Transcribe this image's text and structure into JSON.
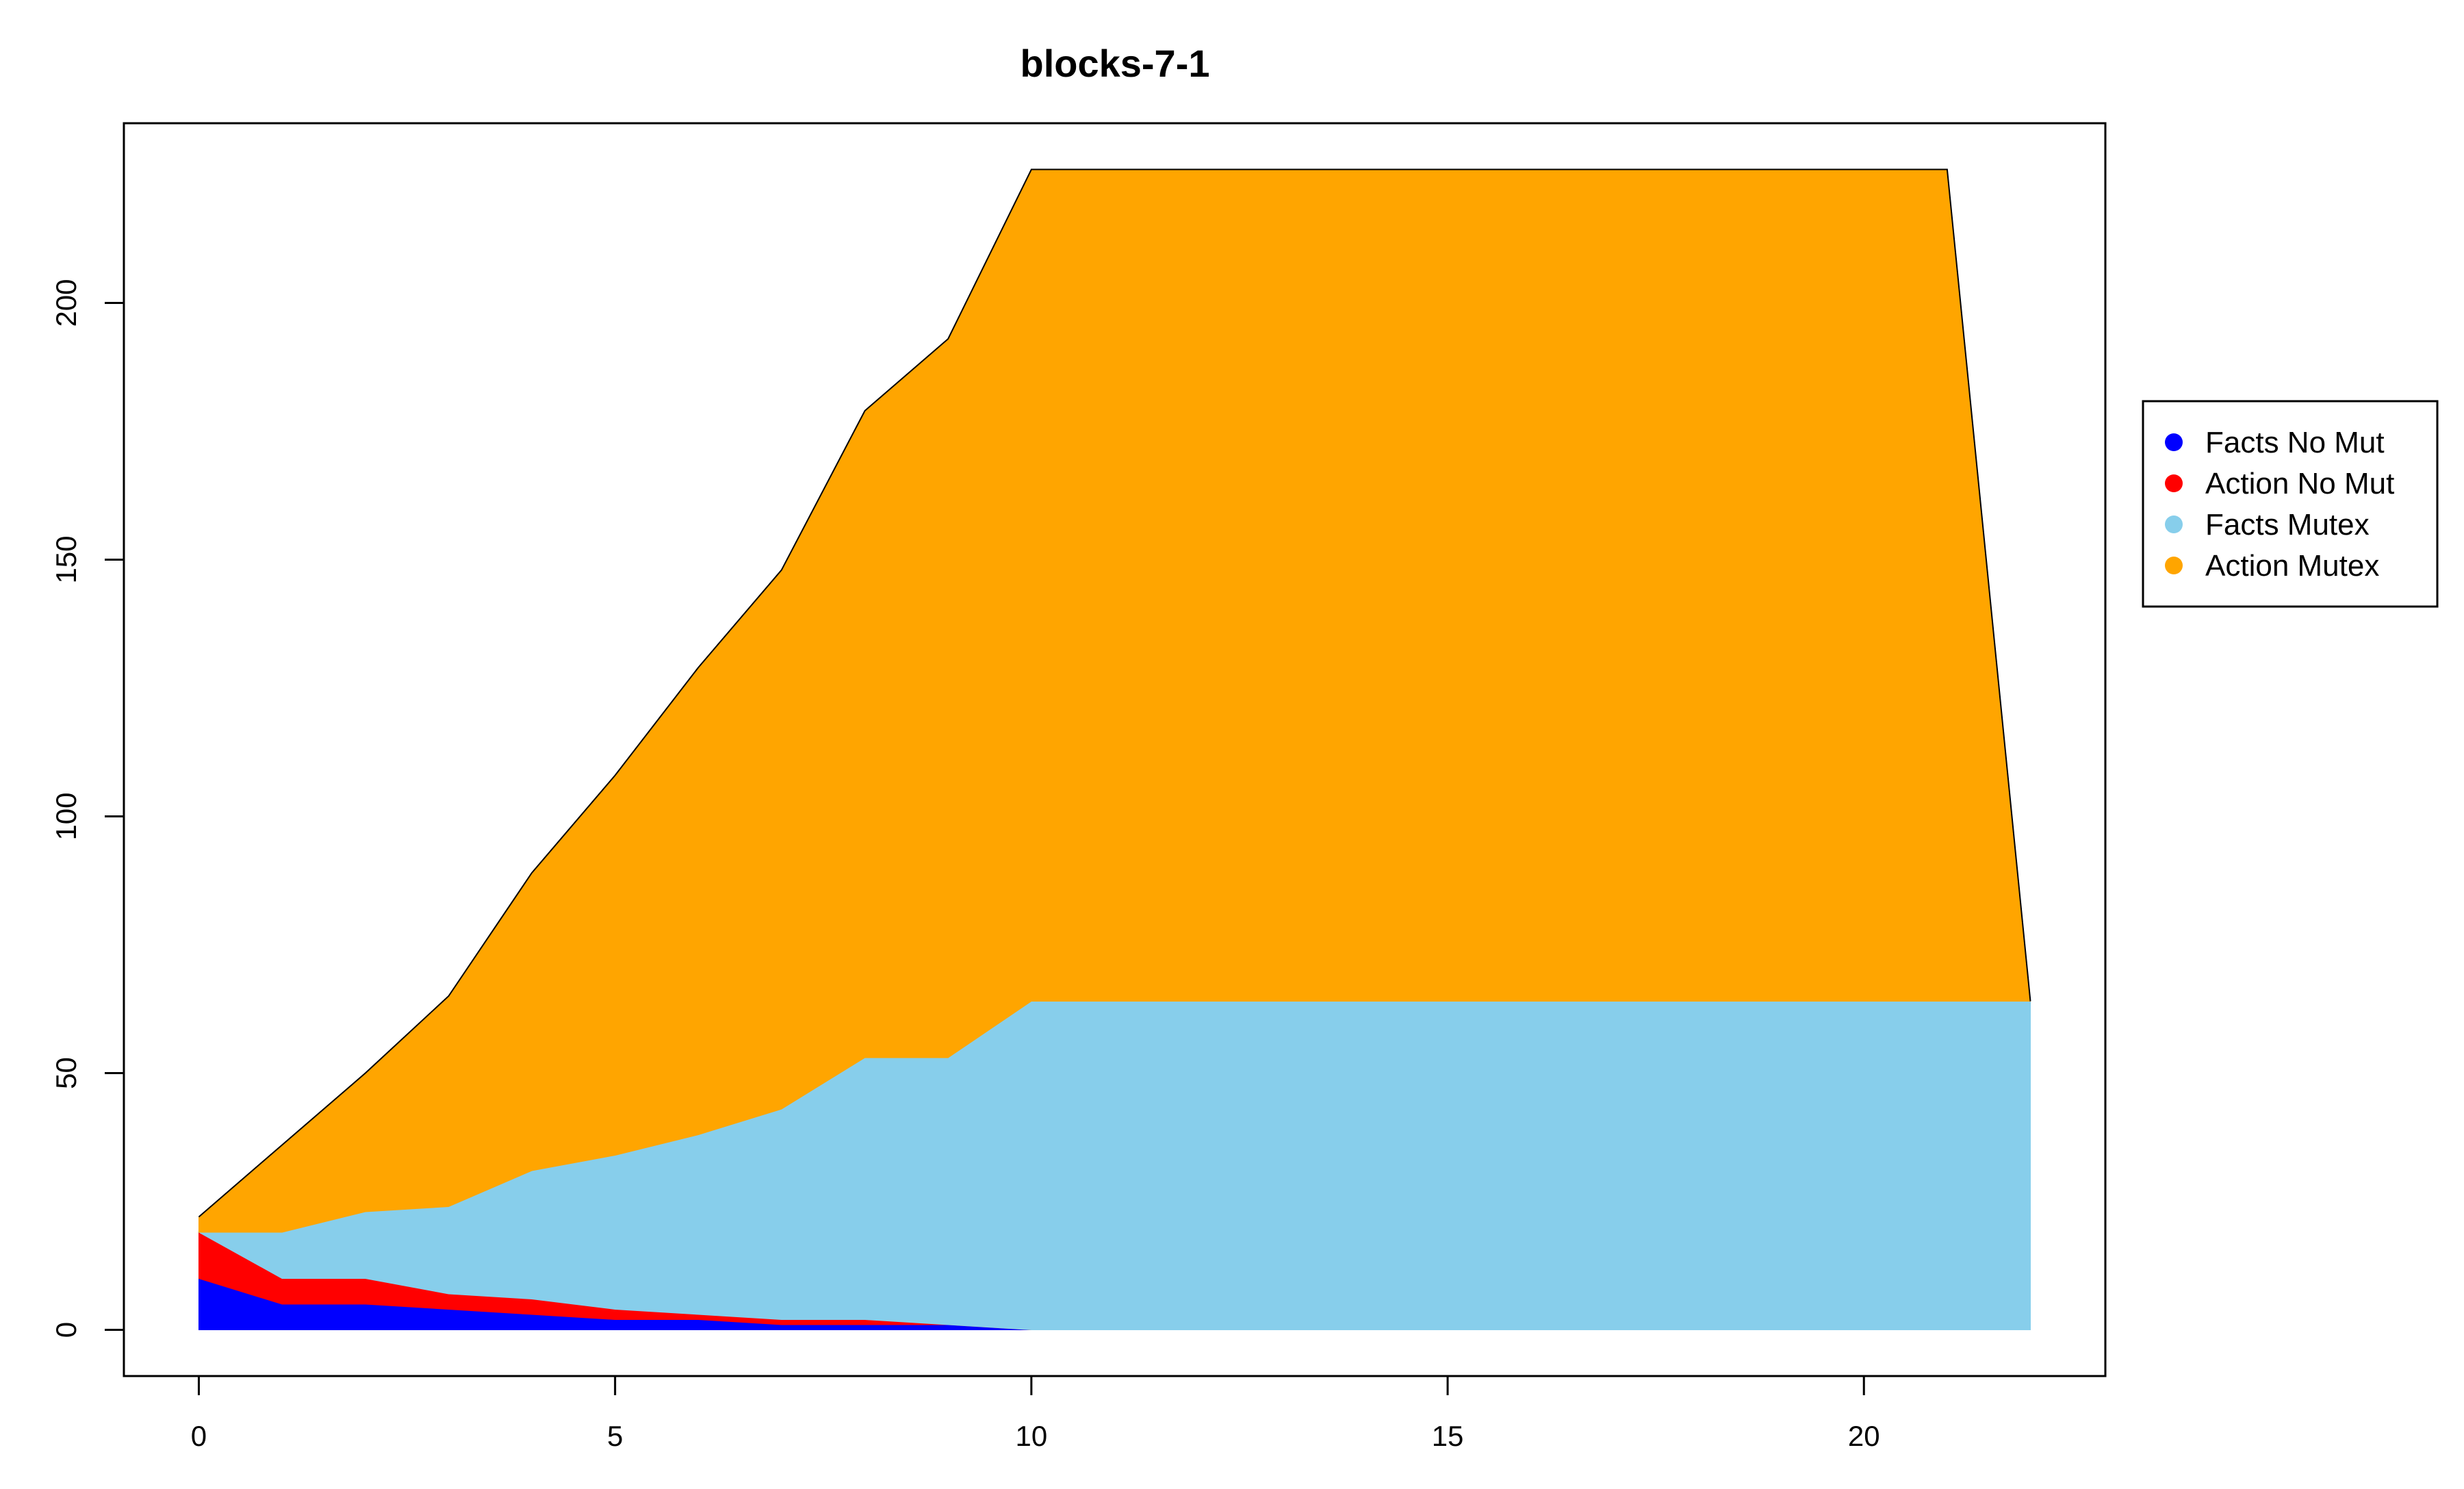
{
  "chart_data": {
    "type": "area",
    "stacked": true,
    "title": "blocks-7-1",
    "xlabel": "",
    "ylabel": "",
    "xlim": [
      -0.9,
      22.9
    ],
    "ylim": [
      -9,
      235
    ],
    "x_ticks": [
      0,
      5,
      10,
      15,
      20
    ],
    "y_ticks": [
      0,
      50,
      100,
      150,
      200
    ],
    "grid": false,
    "legend_position": "right",
    "x": [
      0,
      1,
      2,
      3,
      4,
      5,
      6,
      7,
      8,
      9,
      10,
      11,
      12,
      13,
      14,
      15,
      16,
      17,
      18,
      19,
      20,
      21,
      22
    ],
    "series": [
      {
        "name": "Facts No Mut",
        "color": "#0000ff",
        "values": [
          10,
          5,
          5,
          4,
          3,
          2,
          2,
          1,
          1,
          1,
          0,
          0,
          0,
          0,
          0,
          0,
          0,
          0,
          0,
          0,
          0,
          0,
          0
        ]
      },
      {
        "name": "Action No Mut",
        "color": "#ff0000",
        "values": [
          9,
          5,
          5,
          3,
          3,
          2,
          1,
          1,
          1,
          0,
          0,
          0,
          0,
          0,
          0,
          0,
          0,
          0,
          0,
          0,
          0,
          0,
          0
        ]
      },
      {
        "name": "Facts Mutex",
        "color": "#87ceeb",
        "values": [
          0,
          9,
          13,
          17,
          25,
          30,
          35,
          41,
          51,
          52,
          64,
          64,
          64,
          64,
          64,
          64,
          64,
          64,
          64,
          64,
          64,
          64,
          64
        ]
      },
      {
        "name": "Action Mutex",
        "color": "#ffa500",
        "values": [
          3,
          17,
          27,
          41,
          58,
          74,
          91,
          105,
          126,
          140,
          162,
          162,
          162,
          162,
          162,
          162,
          162,
          162,
          162,
          162,
          162,
          162,
          0
        ]
      }
    ]
  }
}
